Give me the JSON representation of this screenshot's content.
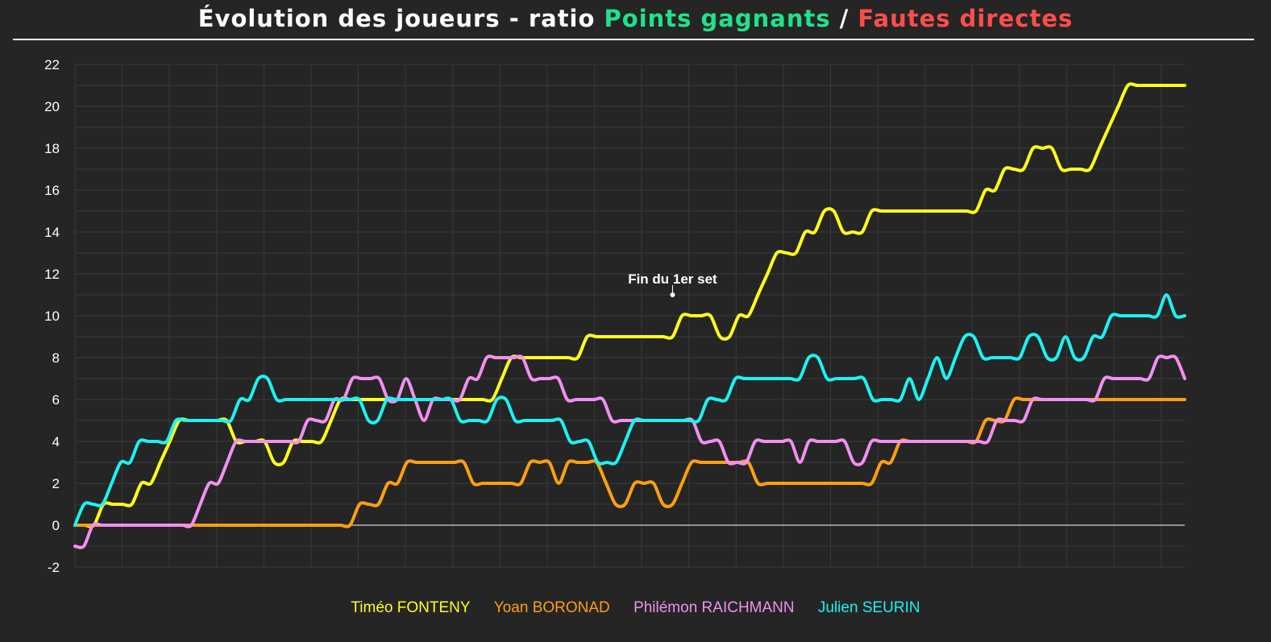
{
  "chart_data": {
    "type": "line",
    "title_parts": [
      {
        "text": "Évolution des joueurs - ratio ",
        "color": "#ffffff"
      },
      {
        "text": "Points gagnants",
        "color": "#1ee38b"
      },
      {
        "text": " / ",
        "color": "#ffffff"
      },
      {
        "text": "Fautes directes",
        "color": "#ff4d4d"
      }
    ],
    "ylim": [
      -2,
      22
    ],
    "yticks": [
      -2,
      0,
      2,
      4,
      6,
      8,
      10,
      12,
      14,
      16,
      18,
      20,
      22
    ],
    "xlim": [
      0,
      117
    ],
    "grid": true,
    "legend_position": "bottom",
    "annotation": {
      "text": "Fin du 1er set",
      "x": 63,
      "y": 11
    },
    "series": [
      {
        "name": "Timéo FONTENY",
        "color": "#ffff1a",
        "values": [
          0,
          0,
          0,
          1,
          1,
          1,
          1,
          2,
          2,
          3,
          4,
          5,
          5,
          5,
          5,
          5,
          5,
          4,
          4,
          4,
          4,
          3,
          3,
          4,
          4,
          4,
          4,
          5,
          6,
          6,
          6,
          6,
          6,
          6,
          6,
          6,
          6,
          6,
          6,
          6,
          6,
          6,
          6,
          6,
          6,
          7,
          8,
          8,
          8,
          8,
          8,
          8,
          8,
          8,
          9,
          9,
          9,
          9,
          9,
          9,
          9,
          9,
          9,
          9,
          10,
          10,
          10,
          10,
          9,
          9,
          10,
          10,
          11,
          12,
          13,
          13,
          13,
          14,
          14,
          15,
          15,
          14,
          14,
          14,
          15,
          15,
          15,
          15,
          15,
          15,
          15,
          15,
          15,
          15,
          15,
          15,
          16,
          16,
          17,
          17,
          17,
          18,
          18,
          18,
          17,
          17,
          17,
          17,
          18,
          19,
          20,
          21,
          21,
          21,
          21,
          21,
          21,
          21
        ]
      },
      {
        "name": "Yoan BORONAD",
        "color": "#ff9f10",
        "values": [
          0,
          0,
          0,
          0,
          0,
          0,
          0,
          0,
          0,
          0,
          0,
          0,
          0,
          0,
          0,
          0,
          0,
          0,
          0,
          0,
          0,
          0,
          0,
          0,
          0,
          0,
          0,
          0,
          0,
          0,
          1,
          1,
          1,
          2,
          2,
          3,
          3,
          3,
          3,
          3,
          3,
          3,
          2,
          2,
          2,
          2,
          2,
          2,
          3,
          3,
          3,
          2,
          3,
          3,
          3,
          3,
          2,
          1,
          1,
          2,
          2,
          2,
          1,
          1,
          2,
          3,
          3,
          3,
          3,
          3,
          3,
          3,
          2,
          2,
          2,
          2,
          2,
          2,
          2,
          2,
          2,
          2,
          2,
          2,
          2,
          3,
          3,
          4,
          4,
          4,
          4,
          4,
          4,
          4,
          4,
          4,
          5,
          5,
          5,
          6,
          6,
          6,
          6,
          6,
          6,
          6,
          6,
          6,
          6,
          6,
          6,
          6,
          6,
          6,
          6,
          6,
          6,
          6
        ]
      },
      {
        "name": "Philémon RAICHMANN",
        "color": "#f28ff2",
        "values": [
          -1,
          -1,
          0,
          0,
          0,
          0,
          0,
          0,
          0,
          0,
          0,
          0,
          0,
          0,
          1,
          2,
          2,
          3,
          4,
          4,
          4,
          4,
          4,
          4,
          4,
          4,
          5,
          5,
          5,
          6,
          6,
          7,
          7,
          7,
          7,
          6,
          6,
          7,
          6,
          5,
          6,
          6,
          6,
          6,
          7,
          7,
          8,
          8,
          8,
          8,
          8,
          7,
          7,
          7,
          7,
          6,
          6,
          6,
          6,
          6,
          5,
          5,
          5,
          5,
          5,
          5,
          5,
          5,
          5,
          5,
          4,
          4,
          4,
          3,
          3,
          3,
          4,
          4,
          4,
          4,
          4,
          3,
          4,
          4,
          4,
          4,
          4,
          3,
          3,
          4,
          4,
          4,
          4,
          4,
          4,
          4,
          4,
          4,
          4,
          4,
          4,
          4,
          4,
          5,
          5,
          5,
          5,
          6,
          6,
          6,
          6,
          6,
          6,
          6,
          6,
          7,
          7,
          7,
          7,
          7,
          7,
          8,
          8,
          8,
          7
        ]
      },
      {
        "name": "Julien SEURIN",
        "color": "#1cf2f2",
        "values": [
          0,
          1,
          1,
          1,
          2,
          3,
          3,
          4,
          4,
          4,
          4,
          5,
          5,
          5,
          5,
          5,
          5,
          5,
          6,
          6,
          7,
          7,
          6,
          6,
          6,
          6,
          6,
          6,
          6,
          6,
          6,
          6,
          5,
          5,
          6,
          6,
          6,
          6,
          6,
          6,
          6,
          6,
          5,
          5,
          5,
          5,
          6,
          6,
          5,
          5,
          5,
          5,
          5,
          5,
          4,
          4,
          4,
          3,
          3,
          3,
          4,
          5,
          5,
          5,
          5,
          5,
          5,
          5,
          5,
          6,
          6,
          6,
          7,
          7,
          7,
          7,
          7,
          7,
          7,
          7,
          8,
          8,
          7,
          7,
          7,
          7,
          7,
          6,
          6,
          6,
          6,
          7,
          6,
          7,
          8,
          7,
          8,
          9,
          9,
          8,
          8,
          8,
          8,
          8,
          9,
          9,
          8,
          8,
          9,
          8,
          8,
          9,
          9,
          10,
          10,
          10,
          10,
          10,
          10,
          11,
          10,
          10
        ]
      }
    ]
  }
}
